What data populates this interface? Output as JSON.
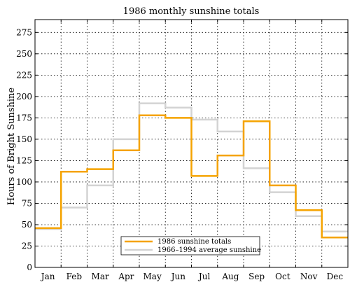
{
  "chart_data": {
    "type": "line",
    "step": true,
    "title": "1986 monthly sunshine totals",
    "xlabel": "",
    "ylabel": "Hours of Bright Sunshine",
    "categories": [
      "Jan",
      "Feb",
      "Mar",
      "Apr",
      "May",
      "Jun",
      "Jul",
      "Aug",
      "Sep",
      "Oct",
      "Nov",
      "Dec"
    ],
    "ylim": [
      0,
      290
    ],
    "yticks": [
      0,
      25,
      50,
      75,
      100,
      125,
      150,
      175,
      200,
      225,
      250,
      275
    ],
    "grid": true,
    "legend_position": "bottom-center",
    "series": [
      {
        "name": "1986 sunshine totals",
        "color": "#f5a300",
        "values": [
          46,
          112,
          115,
          137,
          178,
          175,
          107,
          131,
          171,
          96,
          67,
          35
        ]
      },
      {
        "name": "1966–1994 average sunshine",
        "color": "#d3d3d3",
        "values": [
          45,
          70,
          96,
          150,
          192,
          187,
          173,
          159,
          116,
          88,
          60,
          42
        ]
      }
    ]
  }
}
